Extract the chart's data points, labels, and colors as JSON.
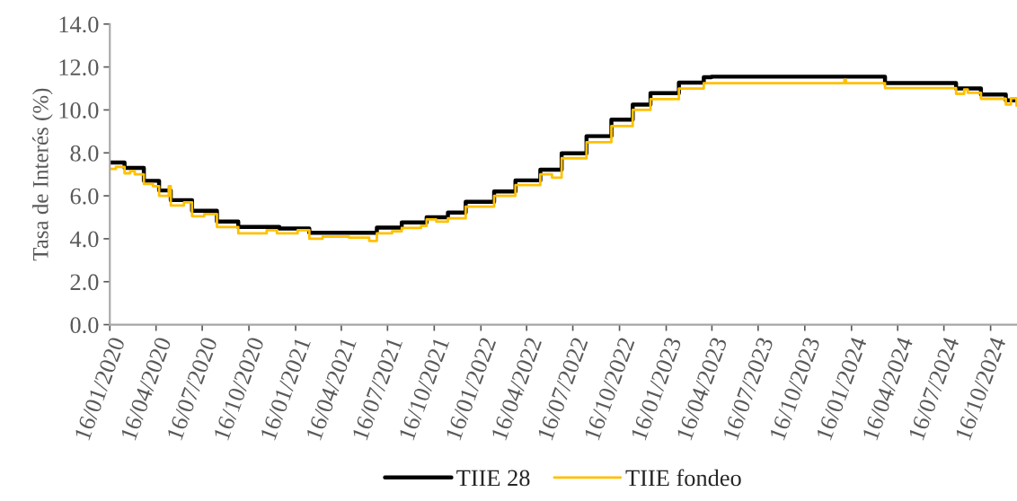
{
  "chart_data": {
    "type": "step",
    "ylabel": "Tasa de Interés (%)",
    "series": [
      {
        "name": "TIIE 28",
        "color": "#000000",
        "x": [
          "2020-01-16",
          "2020-02-14",
          "2020-03-23",
          "2020-04-22",
          "2020-05-15",
          "2020-06-26",
          "2020-08-14",
          "2020-09-25",
          "2020-12-15",
          "2021-02-12",
          "2021-06-25",
          "2021-08-13",
          "2021-10-01",
          "2021-11-12",
          "2021-12-17",
          "2022-02-11",
          "2022-03-25",
          "2022-05-13",
          "2022-06-24",
          "2022-08-12",
          "2022-09-30",
          "2022-11-11",
          "2022-12-16",
          "2023-02-10",
          "2023-03-31",
          "2023-04-15",
          "2024-03-22",
          "2024-08-09",
          "2024-09-27",
          "2024-11-15",
          "2024-12-06"
        ],
        "values": [
          7.55,
          7.3,
          6.7,
          6.25,
          5.8,
          5.3,
          4.8,
          4.55,
          4.48,
          4.28,
          4.52,
          4.76,
          5.0,
          5.22,
          5.72,
          6.2,
          6.72,
          7.22,
          7.98,
          8.78,
          9.55,
          10.25,
          10.78,
          11.27,
          11.52,
          11.55,
          11.25,
          11.0,
          10.72,
          10.45,
          10.45
        ]
      },
      {
        "name": "TIIE fondeo",
        "color": "#ffc000",
        "x": [
          "2020-01-16",
          "2020-01-28",
          "2020-02-14",
          "2020-02-25",
          "2020-03-05",
          "2020-03-23",
          "2020-04-10",
          "2020-04-22",
          "2020-05-11",
          "2020-05-15",
          "2020-06-10",
          "2020-06-26",
          "2020-07-20",
          "2020-08-14",
          "2020-09-25",
          "2020-11-20",
          "2020-12-10",
          "2021-01-20",
          "2021-02-12",
          "2021-03-10",
          "2021-05-01",
          "2021-06-10",
          "2021-06-25",
          "2021-07-25",
          "2021-08-13",
          "2021-09-20",
          "2021-10-01",
          "2021-10-20",
          "2021-11-12",
          "2021-12-17",
          "2022-02-11",
          "2022-03-25",
          "2022-05-13",
          "2022-06-05",
          "2022-06-24",
          "2022-08-12",
          "2022-09-30",
          "2022-11-11",
          "2022-12-16",
          "2023-02-10",
          "2023-03-31",
          "2024-01-02",
          "2024-01-05",
          "2024-03-22",
          "2024-08-09",
          "2024-08-25",
          "2024-09-01",
          "2024-09-27",
          "2024-11-15",
          "2024-11-25",
          "2024-12-06"
        ],
        "values": [
          7.25,
          7.35,
          7.05,
          7.15,
          7.0,
          6.55,
          6.45,
          6.0,
          6.45,
          5.55,
          5.7,
          5.05,
          5.15,
          4.55,
          4.25,
          4.4,
          4.25,
          4.4,
          4.0,
          4.1,
          4.05,
          3.9,
          4.25,
          4.35,
          4.5,
          4.6,
          4.9,
          4.8,
          4.95,
          5.5,
          6.0,
          6.5,
          7.0,
          6.85,
          7.75,
          8.5,
          9.25,
          10.0,
          10.5,
          11.0,
          11.25,
          11.4,
          11.25,
          11.02,
          10.75,
          10.95,
          10.8,
          10.52,
          10.25,
          10.55,
          10.2
        ]
      }
    ],
    "ylim": [
      0,
      14
    ],
    "yticks": [
      {
        "value": 0,
        "label": "0.0"
      },
      {
        "value": 2,
        "label": "2.0"
      },
      {
        "value": 4,
        "label": "4.0"
      },
      {
        "value": 6,
        "label": "6.0"
      },
      {
        "value": 8,
        "label": "8.0"
      },
      {
        "value": 10,
        "label": "10.0"
      },
      {
        "value": 12,
        "label": "12.0"
      },
      {
        "value": 14,
        "label": "14.0"
      }
    ],
    "xlim": [
      "2020-01-16",
      "2024-12-07"
    ],
    "xticks": [
      {
        "value": "2020-01-16",
        "label": "16/01/2020"
      },
      {
        "value": "2020-04-16",
        "label": "16/04/2020"
      },
      {
        "value": "2020-07-16",
        "label": "16/07/2020"
      },
      {
        "value": "2020-10-16",
        "label": "16/10/2020"
      },
      {
        "value": "2021-01-16",
        "label": "16/01/2021"
      },
      {
        "value": "2021-04-16",
        "label": "16/04/2021"
      },
      {
        "value": "2021-07-16",
        "label": "16/07/2021"
      },
      {
        "value": "2021-10-16",
        "label": "16/10/2021"
      },
      {
        "value": "2022-01-16",
        "label": "16/01/2022"
      },
      {
        "value": "2022-04-16",
        "label": "16/04/2022"
      },
      {
        "value": "2022-07-16",
        "label": "16/07/2022"
      },
      {
        "value": "2022-10-16",
        "label": "16/10/2022"
      },
      {
        "value": "2023-01-16",
        "label": "16/01/2023"
      },
      {
        "value": "2023-04-16",
        "label": "16/04/2023"
      },
      {
        "value": "2023-07-16",
        "label": "16/07/2023"
      },
      {
        "value": "2023-10-16",
        "label": "16/10/2023"
      },
      {
        "value": "2024-01-16",
        "label": "16/01/2024"
      },
      {
        "value": "2024-04-16",
        "label": "16/04/2024"
      },
      {
        "value": "2024-07-16",
        "label": "16/07/2024"
      },
      {
        "value": "2024-10-16",
        "label": "16/10/2024"
      }
    ],
    "grid": false,
    "legend": "bottom",
    "marker": "none",
    "line_style": "solid"
  }
}
